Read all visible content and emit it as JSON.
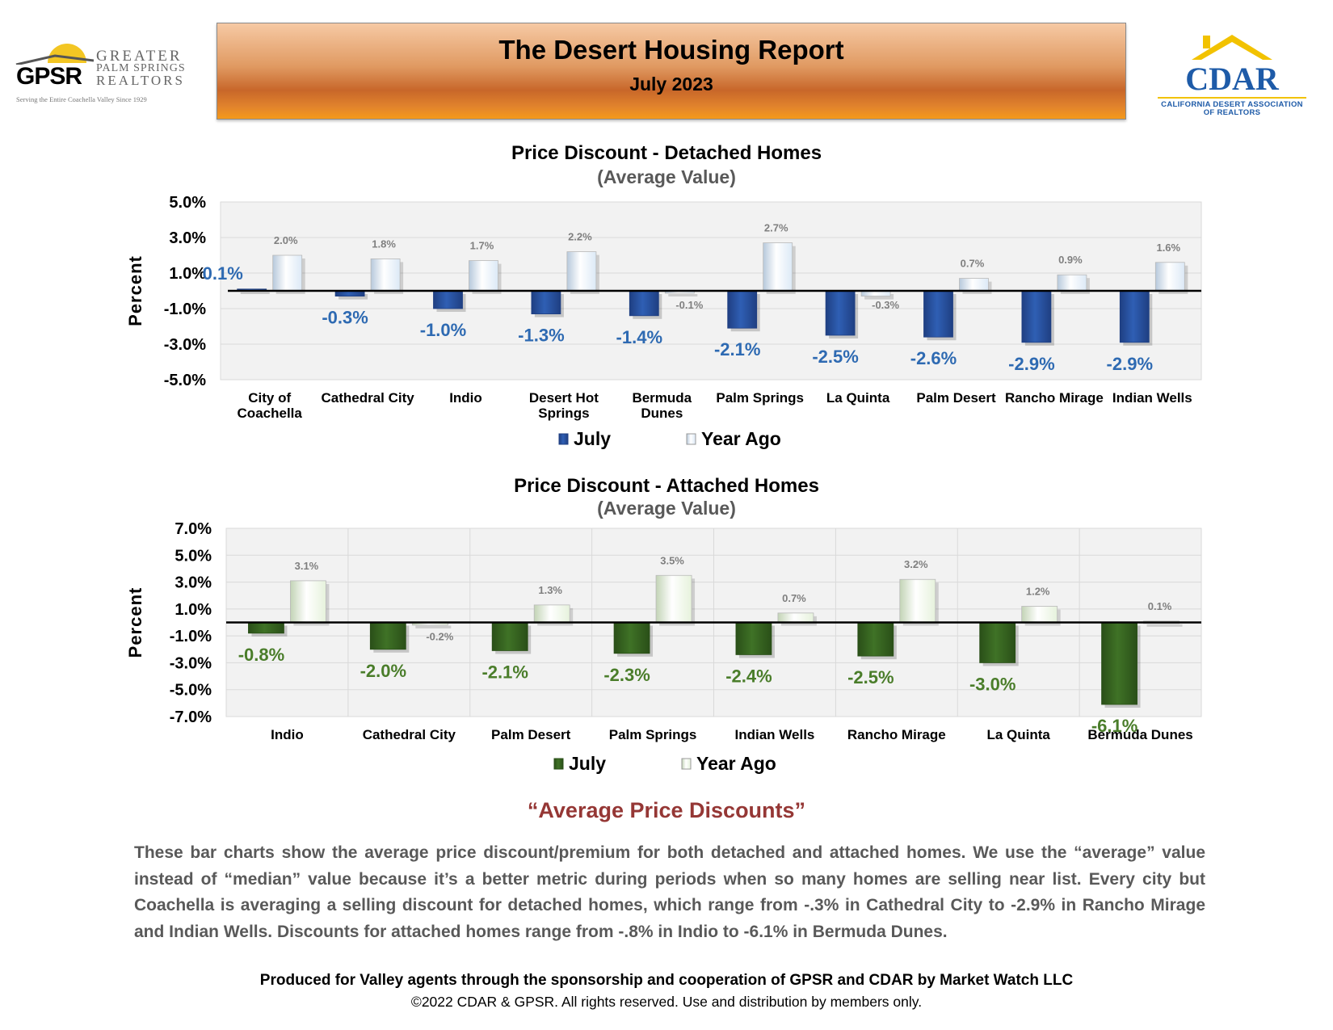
{
  "header": {
    "title": "The Desert Housing Report",
    "subtitle": "July 2023"
  },
  "gpsr_logo": {
    "mark": "GPSR",
    "line1": "GREATER",
    "line2": "PALM SPRINGS",
    "line3": "REALTORS",
    "tagline": "Serving the Entire Coachella Valley Since 1929"
  },
  "cdar_logo": {
    "mark": "CDAR",
    "line1": "CALIFORNIA DESERT ASSOCIATION",
    "line2": "OF REALTORS"
  },
  "colors": {
    "july_detached": "#2f5fb4",
    "july_attached": "#3f7226",
    "year_ago_detached": "#dce9f6",
    "year_ago_attached": "#e6f2dc",
    "label_detached": "#2e6ab2",
    "label_attached": "#4a7d2a",
    "heading": "#953735"
  },
  "chart_data": [
    {
      "type": "bar",
      "title": "Price Discount - Detached Homes",
      "subtitle": "(Average Value)",
      "ylabel": "Percent",
      "ylim": [
        -5,
        5
      ],
      "yticks": [
        "5.0%",
        "3.0%",
        "1.0%",
        "-1.0%",
        "-3.0%",
        "-5.0%"
      ],
      "categories": [
        [
          "City of",
          "Coachella"
        ],
        [
          "Cathedral City"
        ],
        [
          "Indio"
        ],
        [
          "Desert Hot",
          "Springs"
        ],
        [
          "Bermuda",
          "Dunes"
        ],
        [
          "Palm Springs"
        ],
        [
          "La Quinta"
        ],
        [
          "Palm Desert"
        ],
        [
          "Rancho Mirage"
        ],
        [
          "Indian Wells"
        ]
      ],
      "series": [
        {
          "name": "July",
          "values": [
            0.1,
            -0.3,
            -1.0,
            -1.3,
            -1.4,
            -2.1,
            -2.5,
            -2.6,
            -2.9,
            -2.9
          ],
          "labels": [
            "0.1%",
            "-0.3%",
            "-1.0%",
            "-1.3%",
            "-1.4%",
            "-2.1%",
            "-2.5%",
            "-2.6%",
            "-2.9%",
            "-2.9%"
          ]
        },
        {
          "name": "Year Ago",
          "values": [
            2.0,
            1.8,
            1.7,
            2.2,
            -0.1,
            2.7,
            -0.3,
            0.7,
            0.9,
            1.6
          ],
          "labels": [
            "2.0%",
            "1.8%",
            "1.7%",
            "2.2%",
            "-0.1%",
            "2.7%",
            "-0.3%",
            "0.7%",
            "0.9%",
            "1.6%"
          ]
        }
      ],
      "legend": [
        "July",
        "Year Ago"
      ],
      "legend_position": "bottom",
      "grid": true
    },
    {
      "type": "bar",
      "title": "Price Discount - Attached Homes",
      "subtitle": "(Average Value)",
      "ylabel": "Percent",
      "ylim": [
        -7,
        7
      ],
      "yticks": [
        "7.0%",
        "5.0%",
        "3.0%",
        "1.0%",
        "-1.0%",
        "-3.0%",
        "-5.0%",
        "-7.0%"
      ],
      "categories": [
        [
          "Indio"
        ],
        [
          "Cathedral City"
        ],
        [
          "Palm Desert"
        ],
        [
          "Palm Springs"
        ],
        [
          "Indian Wells"
        ],
        [
          "Rancho Mirage"
        ],
        [
          "La Quinta"
        ],
        [
          "Bermuda Dunes"
        ]
      ],
      "series": [
        {
          "name": "July",
          "values": [
            -0.8,
            -2.0,
            -2.1,
            -2.3,
            -2.4,
            -2.5,
            -3.0,
            -6.1
          ],
          "labels": [
            "-0.8%",
            "-2.0%",
            "-2.1%",
            "-2.3%",
            "-2.4%",
            "-2.5%",
            "-3.0%",
            "-6.1%"
          ]
        },
        {
          "name": "Year Ago",
          "values": [
            3.1,
            -0.2,
            1.3,
            3.5,
            0.7,
            3.2,
            1.2,
            0.1
          ],
          "labels": [
            "3.1%",
            "-0.2%",
            "1.3%",
            "3.5%",
            "0.7%",
            "3.2%",
            "1.2%",
            "0.1%"
          ]
        }
      ],
      "legend": [
        "July",
        "Year Ago"
      ],
      "legend_position": "bottom",
      "grid": true
    }
  ],
  "text_section": {
    "heading": "“Average Price Discounts”",
    "paragraph": "These bar charts show the average price discount/premium for both detached and attached homes. We use the “average” value instead of “median” value because it’s a better metric during periods when so many homes are selling near list. Every city but Coachella is averaging a selling discount for detached homes, which range from -.3% in Cathedral City to -2.9% in Rancho Mirage and Indian Wells. Discounts for attached homes range from -.8% in Indio to -6.1% in Bermuda Dunes.",
    "produced": "Produced for Valley agents through the sponsorship and cooperation of GPSR and CDAR by Market Watch LLC",
    "copyright": "©2022 CDAR & GPSR.  All rights reserved.  Use and distribution by members only."
  }
}
